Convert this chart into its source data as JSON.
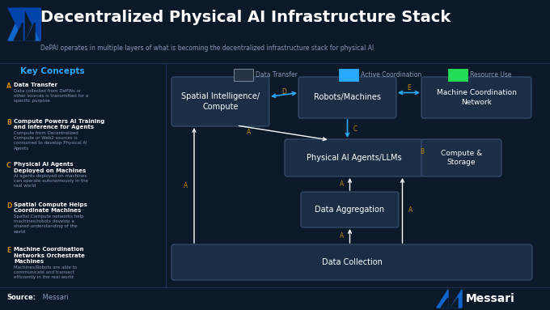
{
  "title": "Decentralized Physical AI Infrastructure Stack",
  "subtitle": "DePAI operates in multiple layers of what is becoming the decentralized infrastructure stack for physical AI",
  "bg_color": "#0b1929",
  "panel_color": "#0d1e35",
  "box_color": "#1c2e45",
  "box_border": "#3a5272",
  "text_color": "#ffffff",
  "dim_text": "#8899bb",
  "accent_blue": "#29aaff",
  "accent_gold": "#cc8800",
  "accent_green": "#22dd55",
  "source_bold": "Source:",
  "source_plain": " Messari",
  "legend_items": [
    {
      "label": "Data Transfer",
      "color": "#aabbcc",
      "fill": "#253545"
    },
    {
      "label": "Active Coordination",
      "color": "#29aaff",
      "fill": "#29aaff"
    },
    {
      "label": "Resource Use",
      "color": "#22dd55",
      "fill": "#22dd55"
    }
  ],
  "key_concepts_title": "Key Concepts",
  "key_concepts": [
    {
      "letter": "A",
      "title": "Data Transfer",
      "desc": "Data collected from DePINs or\nother sources is transmitted for a\nspecific purpose"
    },
    {
      "letter": "B",
      "title": "Compute Powers AI Training\nand Inference for Agents",
      "desc": "Compute from Decentralized\nCompute or Web2 sources is\nconsumed to develop Physical AI\nAgents"
    },
    {
      "letter": "C",
      "title": "Physical AI Agents\nDeployed on Machines",
      "desc": "AI agents deployed on machines\ncan operate autonomously in the\nreal world"
    },
    {
      "letter": "D",
      "title": "Spatial Compute Helps\nCoordinate Machines",
      "desc": "Spatial Compute networks help\nmachines/robots develop a\nshared understanding of the\nworld"
    },
    {
      "letter": "E",
      "title": "Machine Coordination\nNetworks Orchestrate\nMachines",
      "desc": "Machines/Robots are able to\ncommunicate and transact\nefficiently in the real world"
    }
  ]
}
